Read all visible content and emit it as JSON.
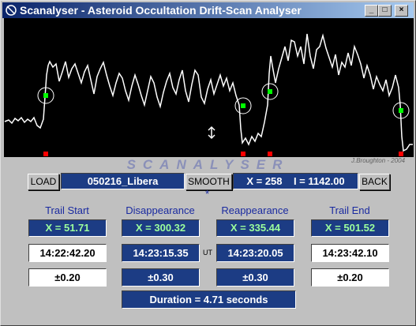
{
  "window": {
    "title": "Scanalyser - Asteroid Occultation Drift-Scan Analyser"
  },
  "banner": {
    "name": "SCANALYSER",
    "credit": "J.Broughton - 2004"
  },
  "toolbar": {
    "load": "LOAD",
    "file": "050216_Libera",
    "smooth": "SMOOTH",
    "smooth_flag": "*",
    "readout": "X = 258    I = 1142.00",
    "back": "BACK"
  },
  "columns": [
    {
      "header": "Trail Start",
      "x": "X = 51.71",
      "time": "14:22:42.20",
      "error": "±0.20"
    },
    {
      "header": "Disappearance",
      "x": "X = 300.32",
      "time": "14:23:15.35",
      "error": "±0.30"
    },
    {
      "header": "Reappearance",
      "x": "X = 335.44",
      "time": "14:23:20.05",
      "error": "±0.30"
    },
    {
      "header": "Trail End",
      "x": "X = 501.52",
      "time": "14:23:42.10",
      "error": "±0.20"
    }
  ],
  "ut_label": "UT",
  "duration": "Duration = 4.71  seconds"
}
